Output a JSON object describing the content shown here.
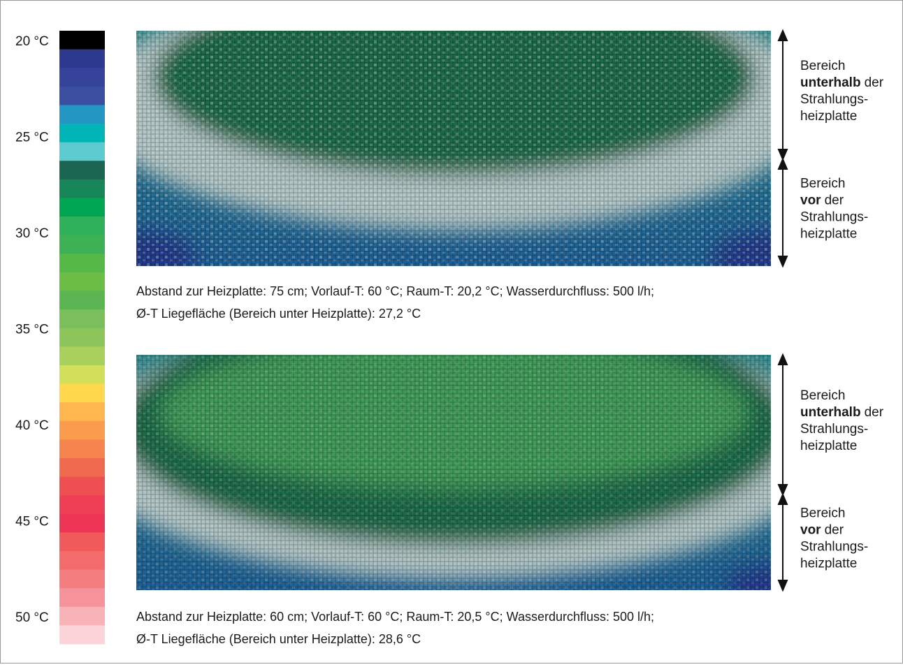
{
  "scale": {
    "labels": [
      "20 °C",
      "25 °C",
      "30 °C",
      "35 °C",
      "40 °C",
      "45 °C",
      "50 °C"
    ],
    "colors": [
      "#000000",
      "#2e3a8f",
      "#35449a",
      "#3a4fa0",
      "#2496c4",
      "#00b5b8",
      "#5ccbd0",
      "#1a6652",
      "#17875a",
      "#00a651",
      "#2fb05a",
      "#3fb155",
      "#55b847",
      "#6bbd45",
      "#5ab552",
      "#7abf5b",
      "#8cc65a",
      "#a8d05a",
      "#d3de5a",
      "#ffd84d",
      "#ffb64f",
      "#fb9b4e",
      "#f6844e",
      "#f06a50",
      "#ee5052",
      "#ee3f56",
      "#ef3555",
      "#f05a5a",
      "#f26c6c",
      "#f47d80",
      "#f6929a",
      "#f8b3b8",
      "#fbd5d8"
    ]
  },
  "panels": [
    {
      "regions": [
        {
          "line1": "Bereich",
          "bold": "unterhalb",
          "rest": "der",
          "line3": "Strahlungs-",
          "line4": "heizplatte"
        },
        {
          "line1": "Bereich",
          "bold": "vor",
          "rest": "der",
          "line3": "Strahlungs-",
          "line4": "heizplatte"
        }
      ],
      "caption": [
        "Abstand zur Heizplatte: 75 cm;  Vorlauf-T: 60 °C; Raum-T: 20,2 °C;  Wasserdurchfluss: 500 l/h;",
        "Ø-T Liegefläche (Bereich unter Heizplatte): 27,2 °C"
      ]
    },
    {
      "regions": [
        {
          "line1": "Bereich",
          "bold": "unterhalb",
          "rest": "der",
          "line3": "Strahlungs-",
          "line4": "heizplatte"
        },
        {
          "line1": "Bereich",
          "bold": "vor",
          "rest": "der",
          "line3": "Strahlungs-",
          "line4": "heizplatte"
        }
      ],
      "caption": [
        "Abstand zur Heizplatte: 60 cm;  Vorlauf-T: 60 °C; Raum-T: 20,5 °C;  Wasserdurchfluss: 500 l/h;",
        "Ø-T Liegefläche (Bereich unter Heizplatte): 28,6 °C"
      ]
    }
  ]
}
